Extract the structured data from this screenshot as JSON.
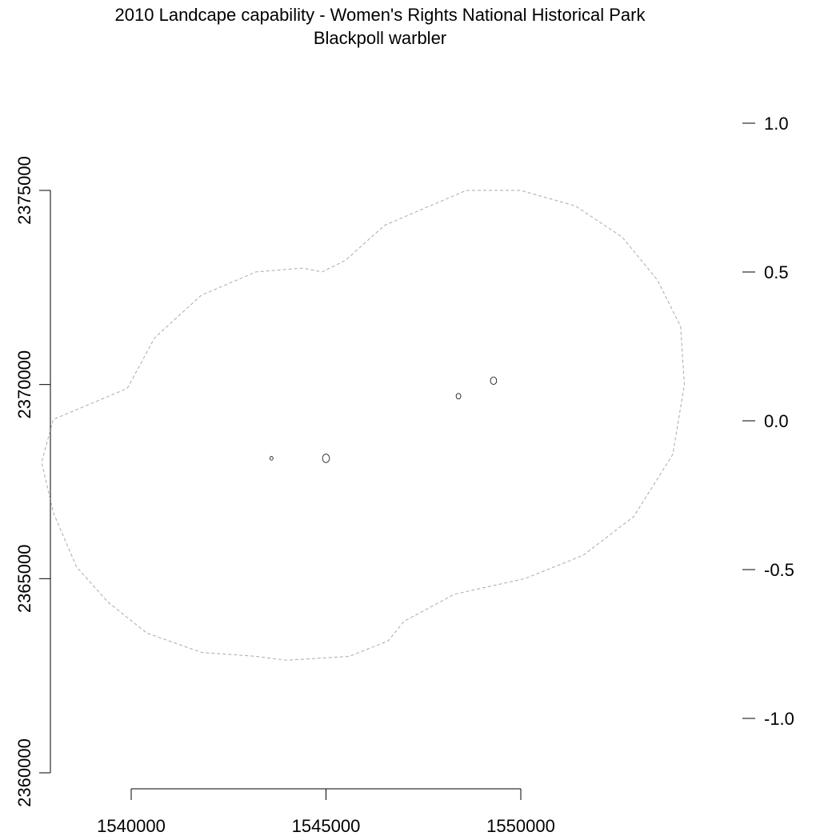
{
  "title": {
    "line1": "2010 Landcape capability - Women's Rights National Historical Park",
    "line2": "Blackpoll warbler"
  },
  "map": {
    "x_axis": {
      "ticks": [
        1540000,
        1545000,
        1550000
      ],
      "tick_labels": [
        "1540000",
        "1545000",
        "1550000"
      ],
      "range": [
        1536500,
        1555000
      ]
    },
    "y_axis": {
      "ticks": [
        2360000,
        2365000,
        2370000,
        2375000
      ],
      "tick_labels": [
        "2360000",
        "2365000",
        "2370000",
        "2375000"
      ],
      "range": [
        2360000,
        2376800
      ]
    },
    "legend_scale": {
      "ticks": [
        1.0,
        0.5,
        0.0,
        -0.5,
        -1.0
      ],
      "tick_labels": [
        "1.0",
        "0.5",
        "0.0",
        "-0.5",
        "-1.0"
      ],
      "range": [
        -1.0,
        1.0
      ]
    },
    "buffer_outline": {
      "color": "#aaaaaa",
      "style": "dashed",
      "points": [
        [
          1539900,
          2369900
        ],
        [
          1540600,
          2371200
        ],
        [
          1541800,
          2372300
        ],
        [
          1543200,
          2372900
        ],
        [
          1544400,
          2373000
        ],
        [
          1544900,
          2372900
        ],
        [
          1545500,
          2373200
        ],
        [
          1546500,
          2374100
        ],
        [
          1548600,
          2375000
        ],
        [
          1550000,
          2375000
        ],
        [
          1551400,
          2374600
        ],
        [
          1552600,
          2373800
        ],
        [
          1553500,
          2372700
        ],
        [
          1554100,
          2371500
        ],
        [
          1554200,
          2370000
        ],
        [
          1553900,
          2368200
        ],
        [
          1552900,
          2366600
        ],
        [
          1551600,
          2365600
        ],
        [
          1550100,
          2365000
        ],
        [
          1548300,
          2364600
        ],
        [
          1547000,
          2363900
        ],
        [
          1546600,
          2363400
        ],
        [
          1545600,
          2363000
        ],
        [
          1544000,
          2362900
        ],
        [
          1543200,
          2363000
        ],
        [
          1541800,
          2363100
        ],
        [
          1540400,
          2363600
        ],
        [
          1539400,
          2364400
        ],
        [
          1538600,
          2365300
        ],
        [
          1538000,
          2366700
        ],
        [
          1537700,
          2368000
        ],
        [
          1538000,
          2369100
        ]
      ]
    },
    "park_units": [
      {
        "name": "",
        "center": [
          1543600,
          2368100
        ],
        "radius": 40
      },
      {
        "name": "",
        "center": [
          1545000,
          2368100
        ],
        "radius": 90
      },
      {
        "name": "",
        "center": [
          1548400,
          2369700
        ],
        "radius": 60
      },
      {
        "name": "",
        "center": [
          1549300,
          2370100
        ],
        "radius": 80
      }
    ]
  }
}
